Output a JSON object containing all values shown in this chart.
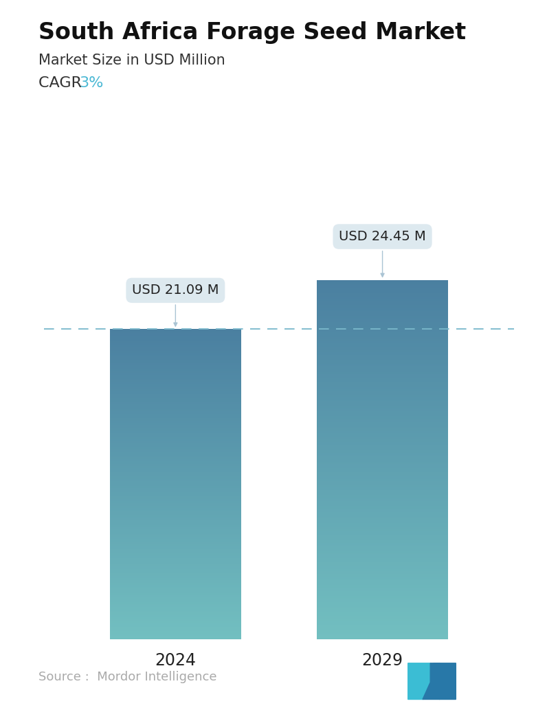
{
  "title": "South Africa Forage Seed Market",
  "subtitle": "Market Size in USD Million",
  "cagr_label": "CAGR ",
  "cagr_value": "3%",
  "cagr_color": "#4ab8d4",
  "categories": [
    "2024",
    "2029"
  ],
  "values": [
    21.09,
    24.45
  ],
  "bar_labels": [
    "USD 21.09 M",
    "USD 24.45 M"
  ],
  "bar_top_color": "#4a7fa0",
  "bar_bottom_color": "#72bfc0",
  "dashed_line_color": "#7ab8cc",
  "dashed_line_y": 21.09,
  "source_text": "Source :  Mordor Intelligence",
  "source_color": "#aaaaaa",
  "background_color": "#ffffff",
  "title_fontsize": 24,
  "subtitle_fontsize": 15,
  "cagr_fontsize": 16,
  "bar_label_fontsize": 14,
  "xtick_fontsize": 17,
  "source_fontsize": 13,
  "ylim": [
    0,
    29
  ],
  "bar_width": 0.28,
  "x_positions": [
    0.28,
    0.72
  ]
}
